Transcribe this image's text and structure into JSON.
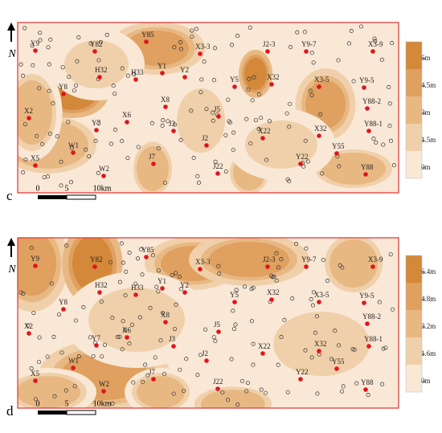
{
  "panels": [
    {
      "label": "c",
      "north": "N",
      "scale_labels": [
        "0",
        "5",
        "10km"
      ],
      "legend_labels": [
        "6m",
        "4.5m",
        "3m",
        "1.5m",
        "0m"
      ],
      "wells": [
        "Y9",
        "Y82",
        "Y85",
        "X3-3",
        "J2-3",
        "Y9-7",
        "X3-9",
        "H32",
        "H33",
        "Y1",
        "Y2",
        "Y5",
        "X32",
        "X3-5",
        "Y9-5",
        "Y8",
        "X8",
        "X2",
        "X6",
        "Y7",
        "J5",
        "Y88-2",
        "J3",
        "X22",
        "X32",
        "Y88-1",
        "W1",
        "J2",
        "Y55",
        "X5",
        "J7",
        "W2",
        "J22",
        "Y22",
        "Y88"
      ]
    },
    {
      "label": "d",
      "north": "N",
      "scale_labels": [
        "0",
        "5",
        "10km"
      ],
      "legend_labels": [
        "6.4m",
        "4.8m",
        "3.2m",
        "1.6m",
        "0m"
      ],
      "wells": [
        "Y9",
        "Y82",
        "Y85",
        "X3-3",
        "J2-3",
        "Y9-7",
        "X3-9",
        "H32",
        "H33",
        "Y1",
        "Y2",
        "Y5",
        "X32",
        "X3-5",
        "Y9-5",
        "Y8",
        "X8",
        "X2",
        "X6",
        "Y7",
        "J5",
        "Y88-2",
        "J3",
        "X22",
        "X32",
        "Y88-1",
        "W1",
        "J2",
        "Y55",
        "X5",
        "J7",
        "W2",
        "J22",
        "Y22",
        "Y88"
      ]
    }
  ]
}
